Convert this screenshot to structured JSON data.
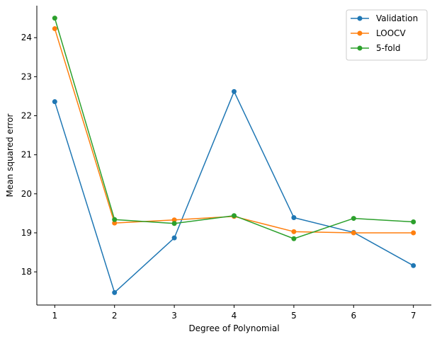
{
  "chart_data": {
    "type": "line",
    "xlabel": "Degree of Polynomial",
    "ylabel": "Mean squared error",
    "x": [
      1,
      2,
      3,
      4,
      5,
      6,
      7
    ],
    "xlim": [
      0.7,
      7.3
    ],
    "ylim": [
      17.15,
      24.82
    ],
    "xticks": [
      1,
      2,
      3,
      4,
      5,
      6,
      7
    ],
    "yticks": [
      18,
      19,
      20,
      21,
      22,
      23,
      24
    ],
    "grid": false,
    "legend_position": "top-right",
    "series": [
      {
        "name": "Validation",
        "color": "#1f77b4",
        "values": [
          22.36,
          17.47,
          18.87,
          22.62,
          19.39,
          19.01,
          18.16
        ]
      },
      {
        "name": "LOOCV",
        "color": "#ff7f0e",
        "values": [
          24.23,
          19.25,
          19.33,
          19.42,
          19.03,
          19.0,
          19.0
        ]
      },
      {
        "name": "5-fold",
        "color": "#2ca02c",
        "values": [
          24.5,
          19.34,
          19.24,
          19.44,
          18.85,
          19.37,
          19.28
        ]
      }
    ]
  }
}
